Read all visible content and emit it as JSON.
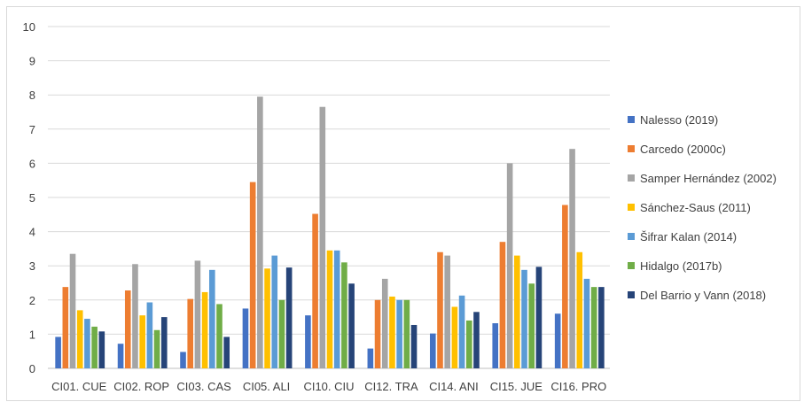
{
  "chart_data": {
    "type": "bar",
    "title": "",
    "xlabel": "",
    "ylabel": "",
    "ylim": [
      0,
      10
    ],
    "yticks": [
      0,
      1,
      2,
      3,
      4,
      5,
      6,
      7,
      8,
      9,
      10
    ],
    "grid": true,
    "legend_position": "right",
    "categories": [
      "CI01. CUE",
      "CI02. ROP",
      "CI03. CAS",
      "CI05. ALI",
      "CI10. CIU",
      "CI12. TRA",
      "CI14. ANI",
      "CI15. JUE",
      "CI16. PRO"
    ],
    "series": [
      {
        "name": "Nalesso (2019)",
        "color": "#4472c4",
        "values": [
          0.92,
          0.72,
          0.48,
          1.75,
          1.55,
          0.58,
          1.02,
          1.32,
          1.6
        ]
      },
      {
        "name": "Carcedo (2000c)",
        "color": "#ed7d31",
        "values": [
          2.38,
          2.28,
          2.03,
          5.45,
          4.52,
          2.0,
          3.4,
          3.7,
          4.78
        ]
      },
      {
        "name": "Samper Hernández (2002)",
        "color": "#a5a5a5",
        "values": [
          3.35,
          3.05,
          3.15,
          7.95,
          7.65,
          2.62,
          3.3,
          6.0,
          6.42
        ]
      },
      {
        "name": "Sánchez-Saus (2011)",
        "color": "#ffc000",
        "values": [
          1.7,
          1.55,
          2.23,
          2.92,
          3.45,
          2.1,
          1.8,
          3.3,
          3.4
        ]
      },
      {
        "name": "Šifrar Kalan (2014)",
        "color": "#5b9bd5",
        "values": [
          1.45,
          1.93,
          2.88,
          3.3,
          3.45,
          2.0,
          2.13,
          2.88,
          2.62
        ]
      },
      {
        "name": "Hidalgo (2017b)",
        "color": "#70ad47",
        "values": [
          1.22,
          1.12,
          1.88,
          2.0,
          3.1,
          2.0,
          1.4,
          2.48,
          2.38
        ]
      },
      {
        "name": "Del Barrio y Vann (2018)",
        "color": "#264478",
        "values": [
          1.08,
          1.5,
          0.92,
          2.95,
          2.48,
          1.27,
          1.65,
          2.97,
          2.38
        ]
      }
    ]
  }
}
